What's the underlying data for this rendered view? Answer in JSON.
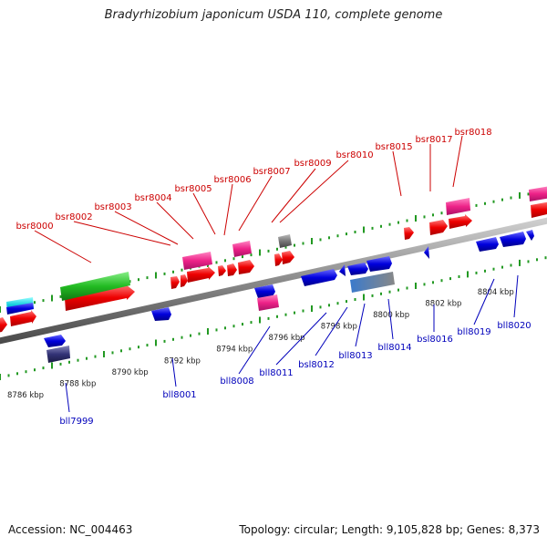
{
  "title": "Bradyrhizobium japonicum USDA 110, complete genome",
  "footer": {
    "accession": "Accession: NC_004463",
    "summary": "Topology: circular; Length: 9,105,828 bp; Genes: 8,373"
  },
  "colors": {
    "forward_label": "#cc0000",
    "reverse_label": "#0000bb",
    "forward_gene": "#ee0000",
    "reverse_gene": "#0000dd",
    "pink_gene": "#ee2288",
    "green_gene": "#22bb22",
    "cyan_gene": "#11ccdd",
    "gray_gene": "#777777",
    "navy_gene": "#333377",
    "backbone": "#8a8a8a",
    "tick": "#229922",
    "scale_text": "#222222"
  },
  "scale_labels": [
    "8786 kbp",
    "8788 kbp",
    "8790 kbp",
    "8792 kbp",
    "8794 kbp",
    "8796 kbp",
    "8798 kbp",
    "8800 kbp",
    "8802 kbp",
    "8804 kbp"
  ],
  "forward_genes": [
    {
      "label": "bsr8018"
    },
    {
      "label": "bsr8017"
    },
    {
      "label": "bsr8015"
    },
    {
      "label": "bsr8010"
    },
    {
      "label": "bsr8009"
    },
    {
      "label": "bsr8007"
    },
    {
      "label": "bsr8006"
    },
    {
      "label": "bsr8005"
    },
    {
      "label": "bsr8004"
    },
    {
      "label": "bsr8003"
    },
    {
      "label": "bsr8002"
    },
    {
      "label": "bsr8000"
    }
  ],
  "reverse_genes": [
    {
      "label": "bll7999"
    },
    {
      "label": "bll8001"
    },
    {
      "label": "bll8008"
    },
    {
      "label": "bll8011"
    },
    {
      "label": "bsl8012"
    },
    {
      "label": "bll8013"
    },
    {
      "label": "bll8014"
    },
    {
      "label": "bsl8016"
    },
    {
      "label": "bll8019"
    },
    {
      "label": "bll8020"
    }
  ]
}
